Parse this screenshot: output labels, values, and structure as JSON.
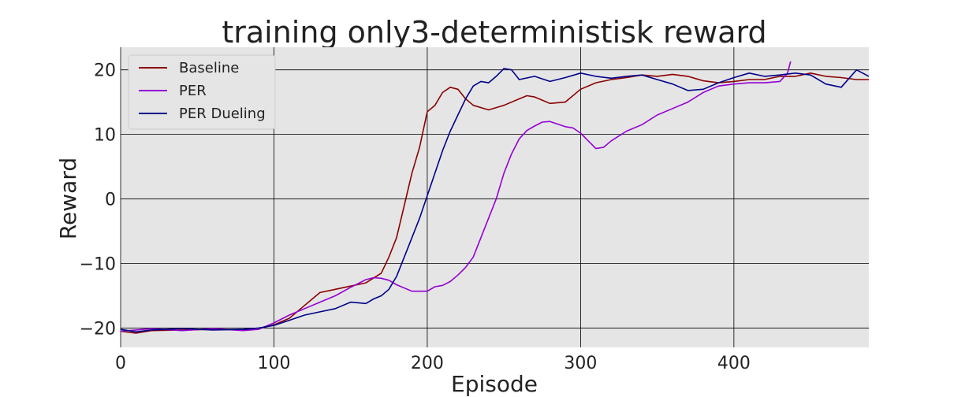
{
  "chart_data": {
    "type": "line",
    "title": "training only3-deterministisk reward",
    "xlabel": "Episode",
    "ylabel": "Reward",
    "xlim": [
      0,
      488
    ],
    "ylim": [
      -23,
      23.5
    ],
    "xticks": [
      0,
      100,
      200,
      300,
      400
    ],
    "yticks": [
      -20,
      -10,
      0,
      10,
      20
    ],
    "xtick_labels": [
      "0",
      "100",
      "200",
      "300",
      "400"
    ],
    "ytick_labels": [
      "−20",
      "−10",
      "0",
      "10",
      "20"
    ],
    "grid": true,
    "legend_position": "top-left",
    "background_color": "#e5e5e5",
    "grid_color": "#000000",
    "series": [
      {
        "name": "Baseline",
        "color": "#8b0000",
        "x": [
          0,
          10,
          20,
          40,
          60,
          80,
          90,
          100,
          110,
          120,
          130,
          140,
          150,
          160,
          170,
          175,
          180,
          185,
          190,
          195,
          200,
          205,
          210,
          215,
          220,
          225,
          230,
          240,
          250,
          260,
          265,
          270,
          280,
          290,
          300,
          310,
          320,
          330,
          340,
          350,
          360,
          370,
          380,
          390,
          400,
          410,
          420,
          430,
          440,
          450,
          460,
          470,
          480,
          488
        ],
        "values": [
          -20.5,
          -20.8,
          -20.4,
          -20.3,
          -20.2,
          -20.3,
          -20.1,
          -19.5,
          -18.5,
          -16.5,
          -14.5,
          -14.0,
          -13.5,
          -13.0,
          -11.5,
          -9.0,
          -6.0,
          -1.0,
          4.0,
          8.0,
          13.5,
          14.5,
          16.5,
          17.3,
          17.0,
          15.5,
          14.5,
          13.8,
          14.5,
          15.5,
          16.0,
          15.8,
          14.8,
          15.0,
          17.0,
          18.0,
          18.5,
          18.8,
          19.2,
          19.0,
          19.3,
          19.0,
          18.3,
          18.0,
          18.2,
          18.5,
          18.5,
          19.0,
          19.0,
          19.5,
          19.0,
          18.8,
          18.5,
          18.5
        ]
      },
      {
        "name": "PER",
        "color": "#9400d3",
        "x": [
          0,
          10,
          20,
          40,
          60,
          80,
          90,
          100,
          110,
          120,
          130,
          140,
          150,
          160,
          165,
          170,
          175,
          180,
          190,
          200,
          205,
          210,
          215,
          220,
          225,
          230,
          235,
          240,
          245,
          250,
          255,
          260,
          265,
          270,
          275,
          280,
          285,
          290,
          295,
          300,
          305,
          310,
          315,
          320,
          330,
          340,
          350,
          360,
          370,
          380,
          390,
          400,
          410,
          420,
          430,
          435,
          437
        ],
        "values": [
          -20.5,
          -20.3,
          -20.1,
          -20.4,
          -20.1,
          -20.4,
          -20.2,
          -19.2,
          -18.0,
          -17.0,
          -16.0,
          -15.0,
          -13.7,
          -12.5,
          -12.2,
          -12.3,
          -12.6,
          -13.3,
          -14.3,
          -14.3,
          -13.6,
          -13.4,
          -12.8,
          -11.8,
          -10.6,
          -9.0,
          -6.0,
          -3.0,
          0.0,
          4.0,
          7.0,
          9.3,
          10.6,
          11.3,
          11.9,
          12.0,
          11.6,
          11.2,
          11.0,
          10.2,
          9.0,
          7.8,
          8.0,
          9.0,
          10.5,
          11.5,
          13.0,
          14.0,
          15.0,
          16.5,
          17.5,
          17.8,
          18.0,
          18.0,
          18.2,
          19.5,
          21.3
        ]
      },
      {
        "name": "PER Dueling",
        "color": "#00008b",
        "x": [
          0,
          10,
          20,
          40,
          60,
          80,
          90,
          100,
          110,
          120,
          130,
          140,
          150,
          160,
          165,
          170,
          175,
          180,
          185,
          190,
          195,
          200,
          205,
          210,
          215,
          220,
          225,
          230,
          235,
          240,
          245,
          250,
          255,
          260,
          270,
          280,
          290,
          300,
          310,
          320,
          330,
          340,
          350,
          360,
          370,
          380,
          390,
          400,
          410,
          420,
          430,
          440,
          450,
          460,
          470,
          480,
          488
        ],
        "values": [
          -20.2,
          -20.6,
          -20.3,
          -20.1,
          -20.3,
          -20.2,
          -20.0,
          -19.6,
          -18.8,
          -18.0,
          -17.5,
          -17.0,
          -16.0,
          -16.2,
          -15.5,
          -15.0,
          -14.0,
          -12.0,
          -9.0,
          -6.0,
          -3.0,
          0.5,
          4.0,
          7.5,
          10.5,
          13.0,
          15.5,
          17.5,
          18.2,
          18.0,
          19.0,
          20.2,
          20.0,
          18.5,
          19.0,
          18.2,
          18.8,
          19.5,
          19.0,
          18.7,
          19.0,
          19.2,
          18.5,
          17.8,
          16.8,
          17.0,
          18.0,
          18.8,
          19.5,
          19.0,
          19.2,
          19.5,
          19.2,
          17.8,
          17.3,
          20.0,
          19.0
        ]
      }
    ]
  }
}
